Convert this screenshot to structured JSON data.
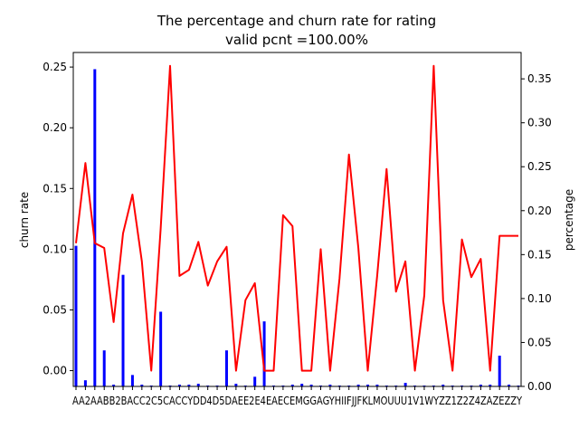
{
  "chart_data": {
    "type": "bar+line",
    "title": "The percentage and churn rate for rating",
    "subtitle": "valid pcnt =100.00%",
    "ylabel": "churn rate",
    "ylabel_right": "percentage",
    "ylim": [
      -0.013,
      0.262
    ],
    "ylim_right": [
      0.0,
      0.38
    ],
    "yticks": [
      "0.00",
      "0.05",
      "0.10",
      "0.15",
      "0.20",
      "0.25"
    ],
    "yticks_right": [
      "0.00",
      "0.05",
      "0.10",
      "0.15",
      "0.20",
      "0.25",
      "0.30",
      "0.35"
    ],
    "categories": [
      "A",
      "A2",
      "AA",
      "AB",
      "B",
      "B2",
      "BA",
      "C",
      "C2",
      "C5",
      "CA",
      "CC",
      "CY",
      "D",
      "D4",
      "D5",
      "DA",
      "E",
      "E2",
      "E4",
      "EA",
      "EC",
      "EM",
      "G",
      "GA",
      "GY",
      "H",
      "I",
      "IF",
      "J",
      "JF",
      "K",
      "L",
      "MO",
      "OU",
      "U",
      "U1",
      "V1",
      "W",
      "Y",
      "Z",
      "Z1",
      "Z2",
      "Z4",
      "ZA",
      "ZE",
      "ZZ",
      "Y"
    ],
    "xtick_labels": [
      "AA2AABB2BACC2C5CACCYDD4D5DAEE2E4EAECEMGGAGYHIIFJJFKLMOUUU1V1WYZZ1Z2Z4ZAZEZZY"
    ],
    "series": [
      {
        "axis": "left",
        "color": "#ff0000",
        "style": "line",
        "values": [
          0.105,
          0.171,
          0.105,
          0.101,
          0.04,
          0.113,
          0.145,
          0.09,
          0.0,
          0.117,
          0.251,
          0.078,
          0.083,
          0.106,
          0.07,
          0.09,
          0.102,
          0.0,
          0.058,
          0.072,
          0.0,
          0.0,
          0.128,
          0.119,
          0.0,
          0.0,
          0.1,
          0.0,
          0.076,
          0.178,
          0.101,
          0.0,
          0.078,
          0.166,
          0.065,
          0.09,
          0.0,
          0.062,
          0.251,
          0.058,
          0.0,
          0.108,
          0.077,
          0.092,
          0.0,
          0.111,
          0.111,
          0.111
        ]
      },
      {
        "axis": "right",
        "color": "#0000ff",
        "style": "bar",
        "values": [
          0.16,
          0.007,
          0.361,
          0.041,
          0.002,
          0.127,
          0.013,
          0.002,
          0.001,
          0.085,
          0.001,
          0.002,
          0.002,
          0.003,
          0.001,
          0.001,
          0.041,
          0.003,
          0.001,
          0.011,
          0.074,
          0.001,
          0.001,
          0.002,
          0.003,
          0.002,
          0.001,
          0.002,
          0.001,
          0.001,
          0.002,
          0.002,
          0.002,
          0.001,
          0.001,
          0.004,
          0.001,
          0.001,
          0.001,
          0.002,
          0.001,
          0.001,
          0.001,
          0.002,
          0.002,
          0.035,
          0.002,
          0.001
        ]
      }
    ],
    "grid": false,
    "legend": "none"
  }
}
